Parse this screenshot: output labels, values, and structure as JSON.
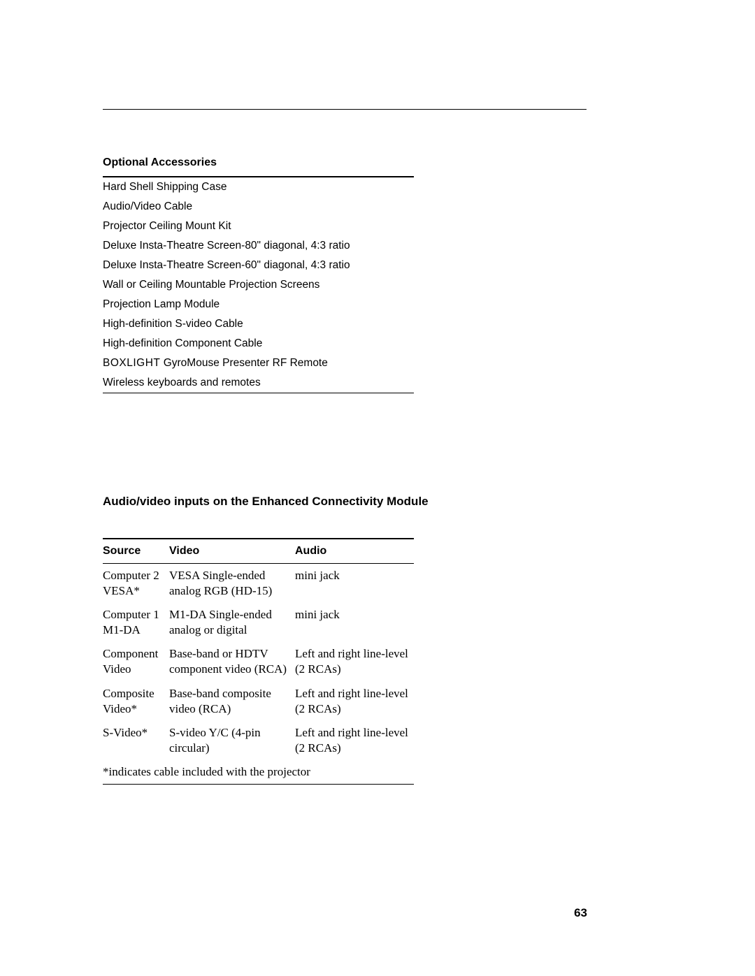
{
  "page_number": "63",
  "accessories": {
    "heading": "Optional Accessories",
    "items": [
      "Hard Shell Shipping Case",
      "Audio/Video Cable",
      "Projector Ceiling Mount Kit",
      "Deluxe Insta-Theatre Screen-80\" diagonal, 4:3 ratio",
      "Deluxe Insta-Theatre Screen-60\" diagonal, 4:3 ratio",
      "Wall or Ceiling Mountable Projection Screens",
      "Projection Lamp Module",
      "High-definition S-video Cable",
      "High-definition Component Cable",
      "BOXLIGHT GyroMouse Presenter RF Remote",
      "Wireless keyboards and remotes"
    ]
  },
  "inputs": {
    "heading": "Audio/video inputs on the Enhanced Connectivity Module",
    "columns": {
      "source": "Source",
      "video": "Video",
      "audio": "Audio"
    },
    "rows": [
      {
        "source": "Computer 2 VESA*",
        "video": "VESA Single-ended analog RGB (HD-15)",
        "audio": "mini jack"
      },
      {
        "source": "Computer 1 M1-DA",
        "video": "M1-DA Single-ended analog or digital",
        "audio": "mini jack"
      },
      {
        "source": "Component Video",
        "video": "Base-band or HDTV component video (RCA)",
        "audio": "Left and right line-level (2 RCAs)"
      },
      {
        "source": "Composite Video*",
        "video": "Base-band composite video (RCA)",
        "audio": "Left and right line-level (2 RCAs)"
      },
      {
        "source": "S-Video*",
        "video": "S-video Y/C (4-pin circular)",
        "audio": "Left and right line-level (2 RCAs)"
      }
    ],
    "footnote": "*indicates cable included with the projector"
  }
}
